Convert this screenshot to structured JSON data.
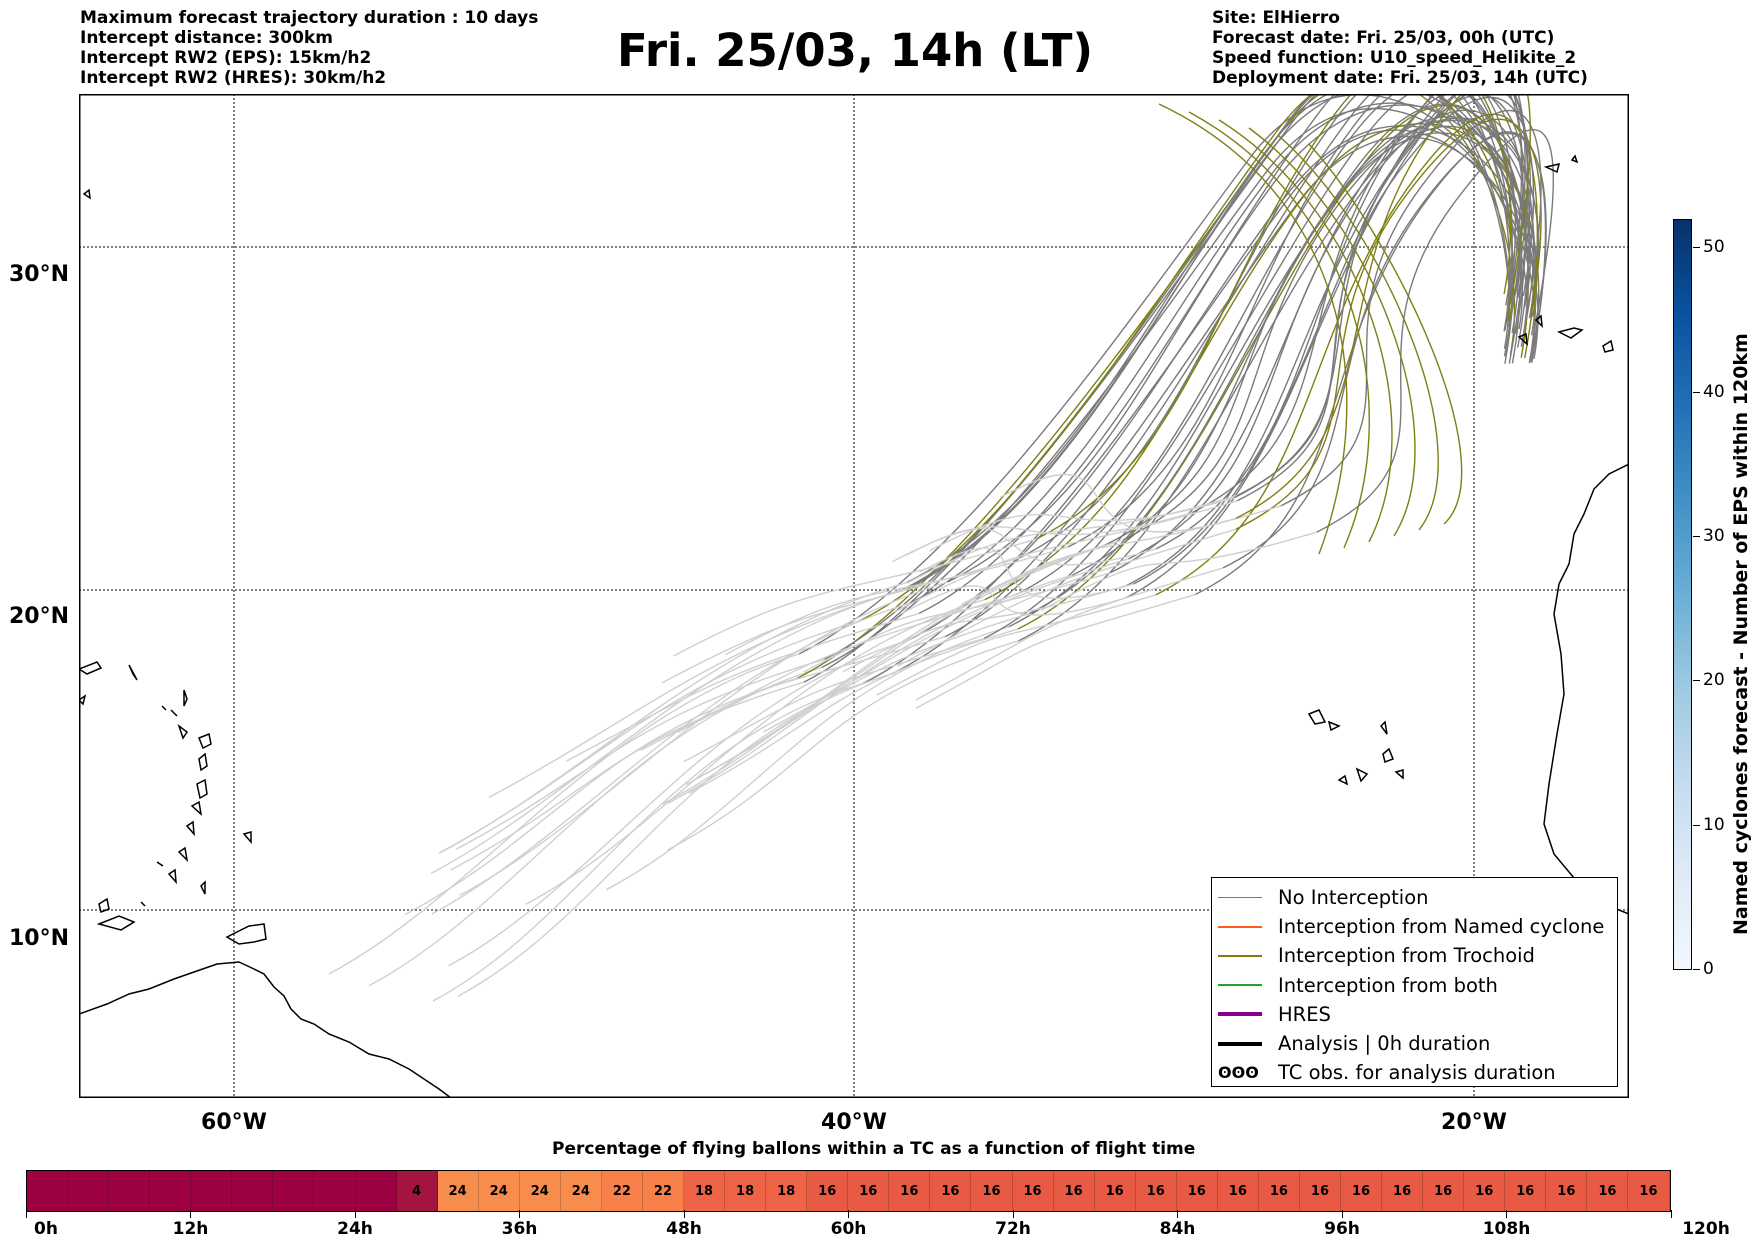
{
  "header": {
    "title": "Fri. 25/03, 14h (LT)",
    "info_left": [
      "Maximum forecast trajectory duration : 10 days",
      "Intercept distance: 300km",
      "Intercept RW2 (EPS):  15km/h2",
      "Intercept RW2 (HRES): 30km/h2"
    ],
    "info_right": [
      "Site: ElHierro",
      "Forecast date: Fri. 25/03, 00h (UTC)",
      "Speed function: U10_speed_Helikite_2",
      "Deployment date: Fri. 25/03, 14h (UTC)"
    ]
  },
  "map": {
    "lat_labels": [
      "30°N",
      "20°N",
      "10°N"
    ],
    "lon_labels": [
      "60°W",
      "40°W",
      "20°W"
    ],
    "colors": {
      "no_interception": "#7a7a7a",
      "light_track": "#cfcfcf",
      "trochoid": "#7f7f14",
      "named_cyclone": "#ff5a1f",
      "both": "#2ca02c",
      "hres": "#8b008b",
      "analysis": "#000000",
      "coast": "#000000"
    }
  },
  "legend": {
    "items": [
      {
        "label": "No Interception",
        "kind": "line",
        "color": "#7a7a7a"
      },
      {
        "label": "Interception from Named cyclone",
        "kind": "line",
        "color": "#ff5a1f"
      },
      {
        "label": "Interception from Trochoid",
        "kind": "line",
        "color": "#7f7f14"
      },
      {
        "label": "Interception from both",
        "kind": "line",
        "color": "#2ca02c"
      },
      {
        "label": "HRES",
        "kind": "thick",
        "color": "#8b008b"
      },
      {
        "label": "Analysis | 0h duration",
        "kind": "thick",
        "color": "#000000"
      },
      {
        "label": "TC obs. for analysis duration",
        "kind": "symbol",
        "color": "#000000",
        "symbol": "ʘʘʘ"
      }
    ]
  },
  "colorbar": {
    "title": "Named cyclones forecast - Number of EPS within 120km",
    "min": 0,
    "max": 52,
    "ticks": [
      0,
      10,
      20,
      30,
      40,
      50
    ]
  },
  "time_bar": {
    "title": "Percentage of flying ballons within a TC as a function of flight time",
    "hours_per_segment": 3,
    "segments": [
      {
        "label": "",
        "span": 9,
        "color": "#9e0142"
      },
      {
        "label": "4",
        "span": 1,
        "color": "#a3143f"
      },
      {
        "label": "24",
        "span": 4,
        "color": "#f88c4c"
      },
      {
        "label": "22",
        "span": 2,
        "color": "#f67f4a"
      },
      {
        "label": "18",
        "span": 3,
        "color": "#ef6446"
      },
      {
        "label": "16",
        "span": 21,
        "color": "#e95a45"
      }
    ],
    "tick_labels": [
      "0h",
      "12h",
      "24h",
      "36h",
      "48h",
      "60h",
      "72h",
      "84h",
      "96h",
      "108h",
      "120h"
    ]
  }
}
